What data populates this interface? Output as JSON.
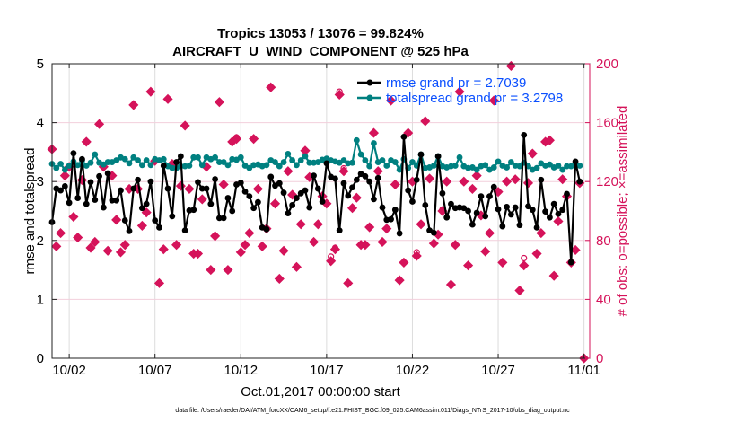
{
  "chart_data": {
    "type": "line",
    "title": [
      "Tropics 13053 / 13076 = 99.824%",
      "AIRCRAFT_U_WIND_COMPONENT @ 525 hPa"
    ],
    "xlabel": "Oct.01,2017 00:00:00 start",
    "ylabel": "rmse and totalspread",
    "ylabel_right": "# of obs: o=possible; ×=assimilated",
    "footnote": "data file: /Users/raeder/DAI/ATM_forcXX/CAM6_setup/f.e21.FHIST_BGC.f09_025.CAM6assim.011/Diags_NTrS_2017-10/obs_diag_output.nc",
    "xlim": [
      "2017-10-01T00:00",
      "2017-11-01T08:00"
    ],
    "ylim": [
      0,
      5
    ],
    "ylim_right": [
      0,
      200
    ],
    "grid": true,
    "legend_position": "top-right",
    "x_ticks": [
      {
        "date": "2017-10-02T00:00",
        "label": "10/02"
      },
      {
        "date": "2017-10-07T00:00",
        "label": "10/07"
      },
      {
        "date": "2017-10-12T00:00",
        "label": "10/12"
      },
      {
        "date": "2017-10-17T00:00",
        "label": "10/17"
      },
      {
        "date": "2017-10-22T00:00",
        "label": "10/22"
      },
      {
        "date": "2017-10-27T00:00",
        "label": "10/27"
      },
      {
        "date": "2017-11-01T00:00",
        "label": "11/01"
      }
    ],
    "y_ticks": [
      "0",
      "1",
      "2",
      "3",
      "4",
      "5"
    ],
    "y_ticks_right": [
      "0",
      "40",
      "80",
      "120",
      "160",
      "200"
    ],
    "colors": {
      "rmse": "#000000",
      "totalspread": "#008080",
      "obs": "#d5135a",
      "legend_text": "#0a4fff",
      "grid_h": "#f2cfdc",
      "grid_v": "#dcdcdc"
    },
    "x": [
      "2017-10-01T00:00",
      "2017-10-01T06:00",
      "2017-10-01T12:00",
      "2017-10-01T18:00",
      "2017-10-02T00:00",
      "2017-10-02T06:00",
      "2017-10-02T12:00",
      "2017-10-02T18:00",
      "2017-10-03T00:00",
      "2017-10-03T06:00",
      "2017-10-03T12:00",
      "2017-10-03T18:00",
      "2017-10-04T00:00",
      "2017-10-04T06:00",
      "2017-10-04T12:00",
      "2017-10-04T18:00",
      "2017-10-05T00:00",
      "2017-10-05T06:00",
      "2017-10-05T12:00",
      "2017-10-05T18:00",
      "2017-10-06T00:00",
      "2017-10-06T06:00",
      "2017-10-06T12:00",
      "2017-10-06T18:00",
      "2017-10-07T00:00",
      "2017-10-07T06:00",
      "2017-10-07T12:00",
      "2017-10-07T18:00",
      "2017-10-08T00:00",
      "2017-10-08T06:00",
      "2017-10-08T12:00",
      "2017-10-08T18:00",
      "2017-10-09T00:00",
      "2017-10-09T06:00",
      "2017-10-09T12:00",
      "2017-10-09T18:00",
      "2017-10-10T00:00",
      "2017-10-10T06:00",
      "2017-10-10T12:00",
      "2017-10-10T18:00",
      "2017-10-11T00:00",
      "2017-10-11T06:00",
      "2017-10-11T12:00",
      "2017-10-11T18:00",
      "2017-10-12T00:00",
      "2017-10-12T06:00",
      "2017-10-12T12:00",
      "2017-10-12T18:00",
      "2017-10-13T00:00",
      "2017-10-13T06:00",
      "2017-10-13T12:00",
      "2017-10-13T18:00",
      "2017-10-14T00:00",
      "2017-10-14T06:00",
      "2017-10-14T12:00",
      "2017-10-14T18:00",
      "2017-10-15T00:00",
      "2017-10-15T06:00",
      "2017-10-15T12:00",
      "2017-10-15T18:00",
      "2017-10-16T00:00",
      "2017-10-16T06:00",
      "2017-10-16T12:00",
      "2017-10-16T18:00",
      "2017-10-17T00:00",
      "2017-10-17T06:00",
      "2017-10-17T12:00",
      "2017-10-17T18:00",
      "2017-10-18T00:00",
      "2017-10-18T06:00",
      "2017-10-18T12:00",
      "2017-10-18T18:00",
      "2017-10-19T00:00",
      "2017-10-19T06:00",
      "2017-10-19T12:00",
      "2017-10-19T18:00",
      "2017-10-20T00:00",
      "2017-10-20T06:00",
      "2017-10-20T12:00",
      "2017-10-20T18:00",
      "2017-10-21T00:00",
      "2017-10-21T06:00",
      "2017-10-21T12:00",
      "2017-10-21T18:00",
      "2017-10-22T00:00",
      "2017-10-22T06:00",
      "2017-10-22T12:00",
      "2017-10-22T18:00",
      "2017-10-23T00:00",
      "2017-10-23T06:00",
      "2017-10-23T12:00",
      "2017-10-23T18:00",
      "2017-10-24T00:00",
      "2017-10-24T06:00",
      "2017-10-24T12:00",
      "2017-10-24T18:00",
      "2017-10-25T00:00",
      "2017-10-25T06:00",
      "2017-10-25T12:00",
      "2017-10-25T18:00",
      "2017-10-26T00:00",
      "2017-10-26T06:00",
      "2017-10-26T12:00",
      "2017-10-26T18:00",
      "2017-10-27T00:00",
      "2017-10-27T06:00",
      "2017-10-27T12:00",
      "2017-10-27T18:00",
      "2017-10-28T00:00",
      "2017-10-28T06:00",
      "2017-10-28T12:00",
      "2017-10-28T18:00",
      "2017-10-29T00:00",
      "2017-10-29T06:00",
      "2017-10-29T12:00",
      "2017-10-29T18:00",
      "2017-10-30T00:00",
      "2017-10-30T06:00",
      "2017-10-30T12:00",
      "2017-10-30T18:00",
      "2017-10-31T00:00",
      "2017-10-31T06:00",
      "2017-10-31T12:00",
      "2017-10-31T18:00",
      "2017-11-01T00:00"
    ],
    "series": [
      {
        "name": "rmse grand pr = 2.7039",
        "axis": "left",
        "values": [
          2.31,
          2.88,
          2.85,
          2.92,
          2.64,
          3.48,
          2.72,
          3.38,
          2.62,
          2.99,
          2.69,
          3.09,
          2.56,
          3.14,
          2.68,
          2.68,
          2.85,
          2.34,
          2.16,
          2.88,
          3.03,
          2.55,
          2.62,
          3.0,
          2.34,
          2.22,
          3.27,
          2.88,
          2.41,
          3.33,
          3.43,
          2.17,
          2.51,
          2.52,
          2.99,
          2.88,
          2.88,
          2.62,
          3.04,
          2.38,
          2.38,
          2.72,
          2.5,
          2.95,
          2.98,
          2.83,
          2.75,
          2.55,
          2.65,
          2.22,
          2.19,
          3.08,
          2.93,
          2.97,
          2.81,
          2.46,
          2.6,
          2.72,
          2.8,
          2.85,
          2.56,
          3.1,
          2.88,
          2.66,
          3.31,
          3.08,
          3.05,
          2.17,
          2.97,
          2.76,
          2.9,
          3.03,
          3.13,
          3.09,
          3.0,
          2.7,
          3.06,
          2.56,
          2.35,
          2.36,
          2.52,
          2.12,
          3.76,
          2.85,
          2.66,
          3.03,
          3.46,
          2.6,
          2.17,
          2.13,
          3.43,
          2.8,
          2.39,
          2.62,
          2.55,
          2.56,
          2.55,
          2.5,
          2.27,
          2.47,
          2.75,
          2.41,
          2.75,
          2.91,
          2.53,
          2.24,
          2.57,
          2.44,
          2.56,
          2.26,
          3.79,
          2.58,
          2.52,
          2.22,
          3.03,
          2.49,
          2.39,
          2.62,
          2.45,
          2.52,
          2.79,
          1.63,
          3.34,
          3.0,
          null
        ]
      },
      {
        "name": "totalspread grand pr = 3.2798",
        "axis": "left",
        "values": [
          3.3,
          3.23,
          3.3,
          3.2,
          3.27,
          3.34,
          3.28,
          3.36,
          3.27,
          3.32,
          3.46,
          3.32,
          3.29,
          3.33,
          3.33,
          3.36,
          3.41,
          3.38,
          3.31,
          3.41,
          3.36,
          3.28,
          3.36,
          3.28,
          3.38,
          3.36,
          3.38,
          3.26,
          3.23,
          3.23,
          3.26,
          3.26,
          3.27,
          3.41,
          3.41,
          3.28,
          3.41,
          3.38,
          3.41,
          3.33,
          3.33,
          3.28,
          3.38,
          3.37,
          3.41,
          3.27,
          3.23,
          3.28,
          3.29,
          3.26,
          3.28,
          3.36,
          3.33,
          3.26,
          3.33,
          3.47,
          3.36,
          3.28,
          3.36,
          3.43,
          3.32,
          3.32,
          3.33,
          3.37,
          3.39,
          3.36,
          3.34,
          3.32,
          3.36,
          3.31,
          3.32,
          3.7,
          3.46,
          3.36,
          3.26,
          3.65,
          3.33,
          3.36,
          3.27,
          3.36,
          3.33,
          3.2,
          3.38,
          3.23,
          3.33,
          3.27,
          3.46,
          3.23,
          3.24,
          3.27,
          3.43,
          3.26,
          3.24,
          3.26,
          3.27,
          3.41,
          3.26,
          3.23,
          3.24,
          3.2,
          3.26,
          3.28,
          3.2,
          3.24,
          3.34,
          3.27,
          3.24,
          3.33,
          3.27,
          3.26,
          3.32,
          3.26,
          3.2,
          3.23,
          3.31,
          3.27,
          3.29,
          3.24,
          3.27,
          3.2,
          3.26,
          3.26,
          3.29,
          3.27,
          null
        ]
      },
      {
        "name": "possible",
        "axis": "right",
        "marker": "o",
        "values": [
          142,
          76,
          85,
          124,
          130,
          96,
          82,
          121,
          147,
          75,
          79,
          159,
          130,
          73,
          124,
          94,
          72,
          77,
          115,
          172,
          115,
          90,
          99,
          181,
          134,
          51,
          74,
          176,
          132,
          77,
          117,
          158,
          115,
          71,
          71,
          108,
          130,
          60,
          83,
          174,
          118,
          60,
          147,
          150,
          72,
          77,
          85,
          149,
          115,
          76,
          88,
          184,
          105,
          54,
          73,
          127,
          111,
          62,
          91,
          141,
          123,
          79,
          91,
          110,
          105,
          69,
          75,
          181,
          129,
          51,
          102,
          109,
          77,
          77,
          89,
          153,
          127,
          79,
          88,
          175,
          118,
          53,
          65,
          153,
          120,
          72,
          91,
          161,
          122,
          78,
          84,
          101,
          120,
          50,
          77,
          181,
          120,
          63,
          115,
          124,
          97,
          72.5,
          85,
          175,
          113,
          65,
          120,
          198.5,
          121.5,
          46,
          68,
          119,
          139,
          71,
          85,
          147,
          148,
          56,
          93,
          121.5,
          110,
          65,
          73.5,
          119,
          0
        ]
      },
      {
        "name": "assimilated",
        "axis": "right",
        "marker": "*",
        "values": [
          142,
          76,
          85,
          124,
          130,
          96,
          82,
          121,
          147,
          75,
          79,
          159,
          130,
          73,
          124,
          94,
          72,
          77,
          115,
          172,
          115,
          90,
          99,
          181,
          134,
          51,
          74,
          176,
          132,
          77,
          117,
          158,
          115,
          71,
          71,
          108,
          130,
          60,
          83,
          174,
          118,
          60,
          147,
          149,
          72,
          77,
          85,
          149,
          115,
          76,
          88,
          184,
          105,
          54,
          73,
          127,
          111,
          62,
          91,
          141,
          123,
          79,
          91,
          110,
          105,
          66,
          74,
          179,
          127,
          51,
          102,
          109,
          77,
          77,
          89,
          153,
          127,
          79,
          88,
          175,
          118,
          53,
          65,
          153,
          120,
          69.5,
          91,
          161,
          122,
          78,
          84,
          100,
          120,
          50,
          77,
          181,
          120,
          63,
          115,
          124,
          97,
          72.5,
          85,
          175,
          113,
          65,
          120,
          198.5,
          121.5,
          46,
          63,
          119,
          139,
          71,
          85,
          147,
          148,
          56,
          93,
          121.5,
          110,
          65,
          73.5,
          119,
          0
        ]
      }
    ]
  }
}
